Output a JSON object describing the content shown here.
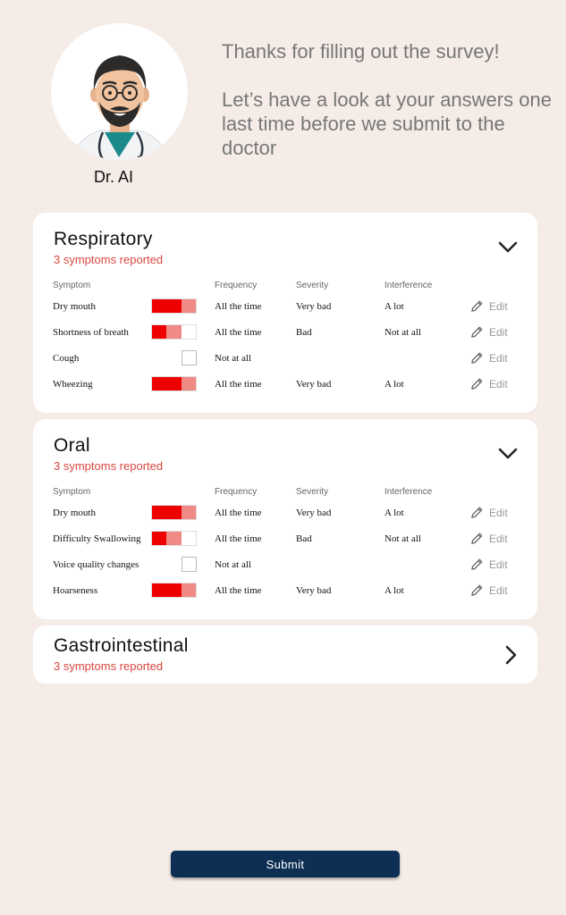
{
  "doctor": {
    "name": "Dr. AI"
  },
  "intro": {
    "line1": "Thanks for filling out the survey!",
    "line2": "Let’s have a look at your answers one last time before we submit to the doctor"
  },
  "colors": {
    "background": "#f5ece7",
    "severe": "#ee0000",
    "light": "#f08a84",
    "subtitle": "#d9463f",
    "submit": "#0e2f54"
  },
  "table_headers": {
    "symptom": "Symptom",
    "frequency": "Frequency",
    "severity": "Severity",
    "interference": "Interference"
  },
  "edit_label": "Edit",
  "sections": [
    {
      "title": "Respiratory",
      "subtitle": "3 symptoms reported",
      "expanded": true,
      "rows": [
        {
          "symptom": "Dry mouth",
          "level": 3,
          "frequency": "All the time",
          "severity": "Very bad",
          "interference": "A lot"
        },
        {
          "symptom": "Shortness of breath",
          "level": 2,
          "frequency": "All the time",
          "severity": "Bad",
          "interference": "Not at all"
        },
        {
          "symptom": "Cough",
          "level": 0,
          "frequency": "Not at all",
          "severity": "",
          "interference": ""
        },
        {
          "symptom": "Wheezing",
          "level": 3,
          "frequency": "All the time",
          "severity": "Very bad",
          "interference": "A lot"
        }
      ]
    },
    {
      "title": "Oral",
      "subtitle": "3 symptoms reported",
      "expanded": true,
      "rows": [
        {
          "symptom": "Dry mouth",
          "level": 3,
          "frequency": "All the time",
          "severity": "Very bad",
          "interference": "A lot"
        },
        {
          "symptom": "Difficulty Swallowing",
          "level": 2,
          "frequency": "All the time",
          "severity": "Bad",
          "interference": "Not at all"
        },
        {
          "symptom": "Voice quality changes",
          "level": 0,
          "frequency": "Not at all",
          "severity": "",
          "interference": ""
        },
        {
          "symptom": "Hoarseness",
          "level": 3,
          "frequency": "All the time",
          "severity": "Very bad",
          "interference": "A lot"
        }
      ]
    },
    {
      "title": "Gastrointestinal",
      "subtitle": "3 symptoms reported",
      "expanded": false,
      "rows": []
    }
  ],
  "submit_label": "Submit"
}
